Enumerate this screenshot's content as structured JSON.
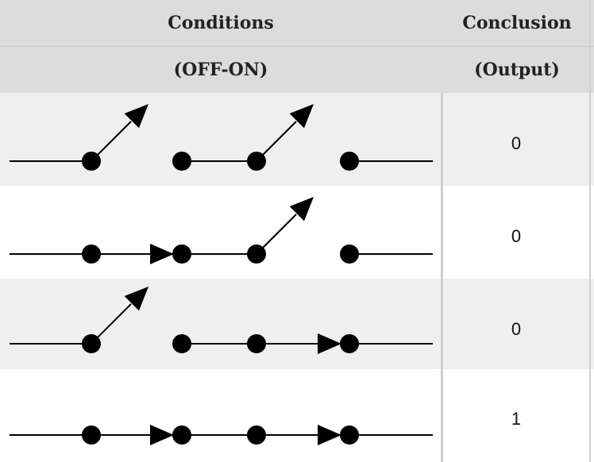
{
  "header": {
    "conditions_label": "Conditions",
    "conclusion_label": "Conclusion",
    "conditions_sublabel": "(OFF-ON)",
    "conclusion_sublabel": "(Output)"
  },
  "rows": [
    {
      "switches": [
        "open",
        "open",
        "open"
      ],
      "output": "0"
    },
    {
      "switches": [
        "closed",
        "open",
        "open"
      ],
      "output": "0"
    },
    {
      "switches": [
        "open",
        "closed",
        "closed"
      ],
      "output": "0"
    },
    {
      "switches": [
        "closed",
        "closed",
        "closed"
      ],
      "output": "1"
    }
  ],
  "colors": {
    "header_bg": "#dcdcdc",
    "row_odd_bg": "#efefef",
    "row_even_bg": "#ffffff",
    "ink": "#000000"
  }
}
